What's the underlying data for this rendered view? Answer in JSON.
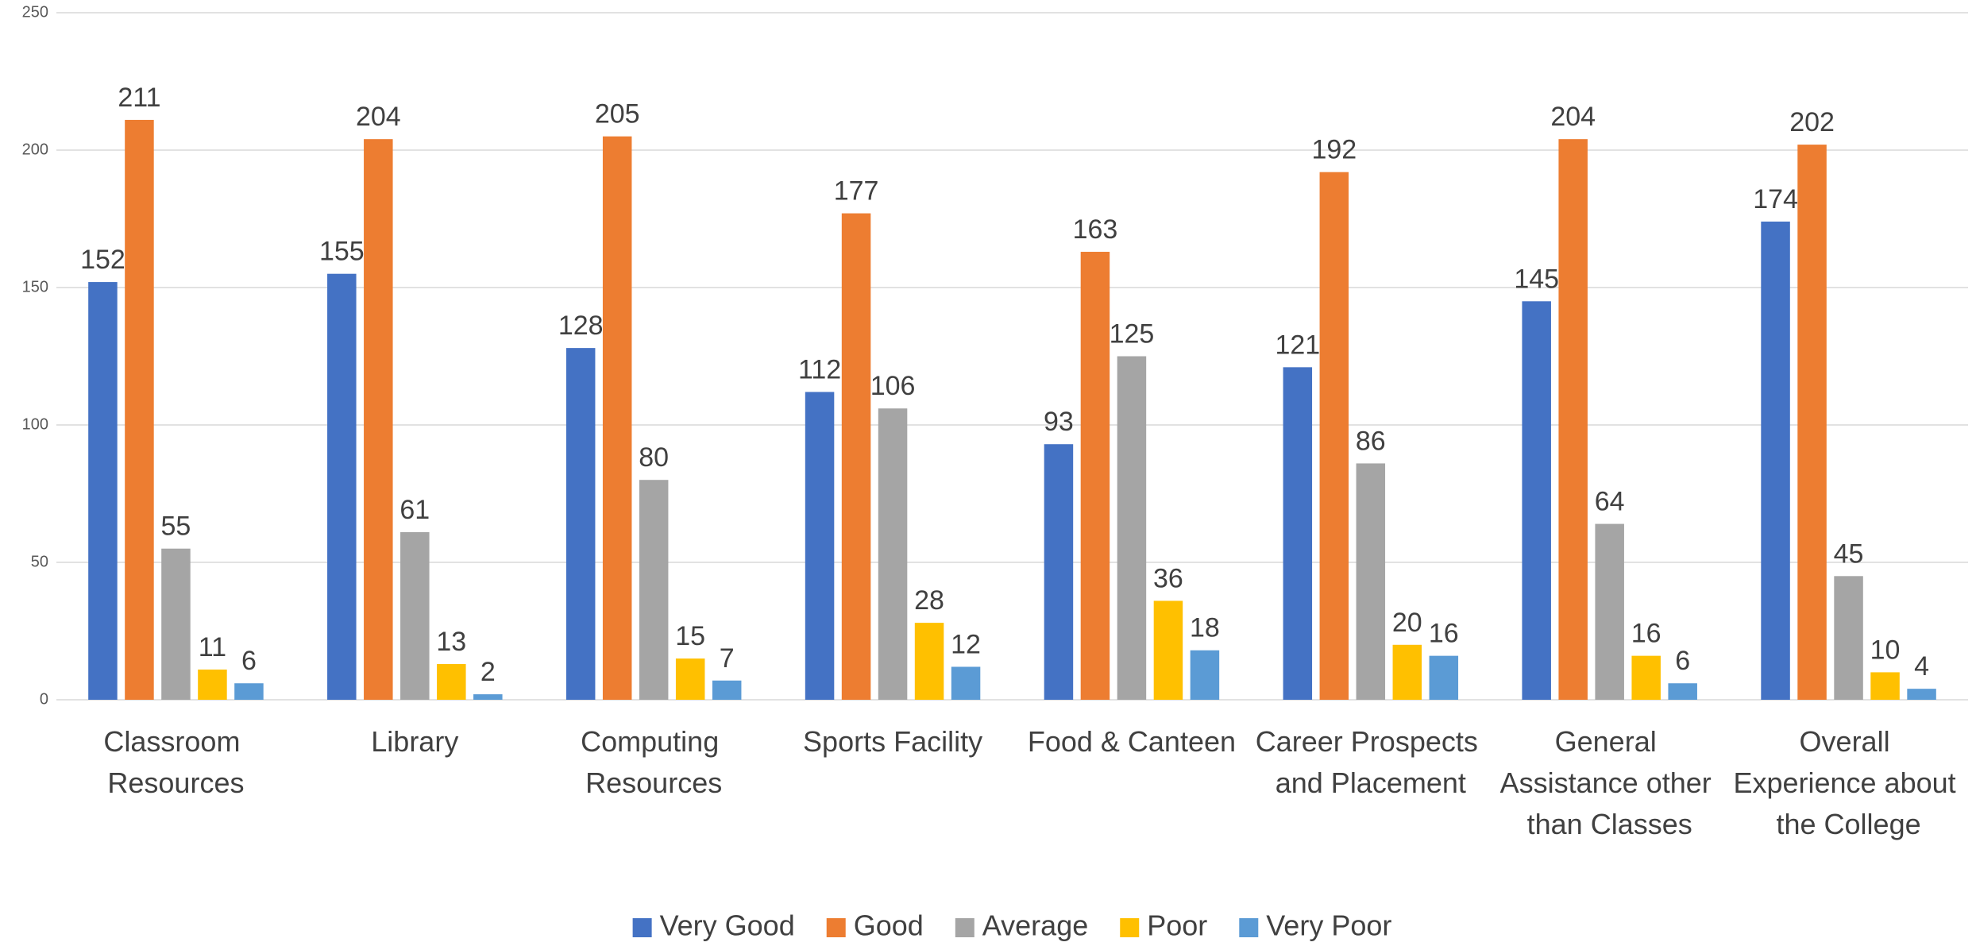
{
  "chart_data": {
    "type": "bar",
    "categories": [
      "Classroom Resources",
      "Library",
      "Computing Resources",
      "Sports Facility",
      "Food & Canteen",
      "Career Prospects and Placement",
      "General Assistance other than Classes",
      "Overall Experience about the College"
    ],
    "series": [
      {
        "name": "Very Good",
        "color": "#4472c4",
        "values": [
          152,
          155,
          128,
          112,
          93,
          121,
          145,
          174
        ]
      },
      {
        "name": "Good",
        "color": "#ed7d31",
        "values": [
          211,
          204,
          205,
          177,
          163,
          192,
          204,
          202
        ]
      },
      {
        "name": "Average",
        "color": "#a5a5a5",
        "values": [
          55,
          61,
          80,
          106,
          125,
          86,
          64,
          45
        ]
      },
      {
        "name": "Poor",
        "color": "#ffc000",
        "values": [
          11,
          13,
          15,
          28,
          36,
          20,
          16,
          10
        ]
      },
      {
        "name": "Very Poor",
        "color": "#5b9bd5",
        "values": [
          6,
          2,
          7,
          12,
          18,
          16,
          6,
          4
        ]
      }
    ],
    "ylim": [
      0,
      250
    ],
    "yticks": [
      0,
      50,
      100,
      150,
      200,
      250
    ],
    "grid": true,
    "legend": "bottom"
  }
}
